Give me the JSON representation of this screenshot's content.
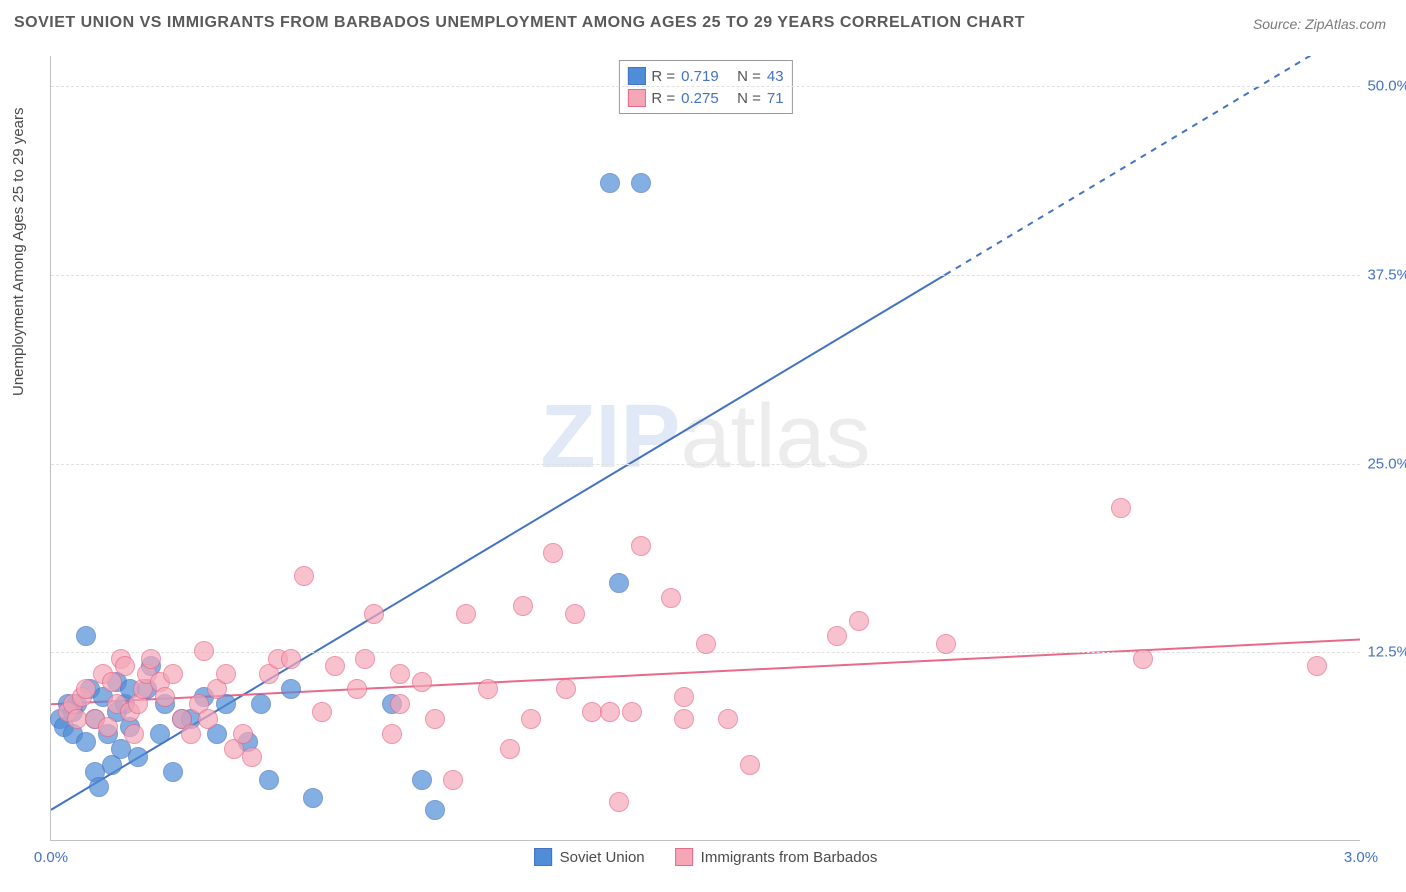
{
  "title": "SOVIET UNION VS IMMIGRANTS FROM BARBADOS UNEMPLOYMENT AMONG AGES 25 TO 29 YEARS CORRELATION CHART",
  "source": "Source: ZipAtlas.com",
  "watermark_prefix": "ZIP",
  "watermark_suffix": "atlas",
  "ylabel": "Unemployment Among Ages 25 to 29 years",
  "chart": {
    "type": "scatter",
    "background_color": "#ffffff",
    "grid_color": "#e0e0e0",
    "axis_color": "#c0c0c0",
    "tick_color": "#4472c4",
    "tick_fontsize": 15,
    "xlim": [
      0.0,
      3.0
    ],
    "ylim": [
      0.0,
      52.0
    ],
    "xticks": [
      {
        "v": 0.0,
        "label": "0.0%"
      },
      {
        "v": 3.0,
        "label": "3.0%"
      }
    ],
    "yticks": [
      {
        "v": 12.5,
        "label": "12.5%"
      },
      {
        "v": 25.0,
        "label": "25.0%"
      },
      {
        "v": 37.5,
        "label": "37.5%"
      },
      {
        "v": 50.0,
        "label": "50.0%"
      }
    ],
    "point_radius": 10,
    "point_fill_opacity": 0.35,
    "point_stroke_width": 1.5,
    "series": [
      {
        "id": "soviet",
        "name": "Soviet Union",
        "color": "#4f8ed6",
        "stroke": "#4472c4",
        "R": "0.719",
        "N": "43",
        "trend": {
          "x1": 0.0,
          "y1": 2.0,
          "x2": 2.05,
          "y2": 37.5,
          "dash_from_x": 2.05,
          "x3": 3.0,
          "y3": 54.0,
          "width": 2
        },
        "points": [
          [
            0.02,
            8.0
          ],
          [
            0.03,
            7.5
          ],
          [
            0.04,
            9.0
          ],
          [
            0.05,
            8.5
          ],
          [
            0.05,
            7.0
          ],
          [
            0.06,
            9.0
          ],
          [
            0.08,
            13.5
          ],
          [
            0.08,
            6.5
          ],
          [
            0.09,
            10.0
          ],
          [
            0.1,
            8.0
          ],
          [
            0.1,
            4.5
          ],
          [
            0.11,
            3.5
          ],
          [
            0.12,
            9.5
          ],
          [
            0.13,
            7.0
          ],
          [
            0.14,
            5.0
          ],
          [
            0.15,
            8.5
          ],
          [
            0.15,
            10.5
          ],
          [
            0.16,
            6.0
          ],
          [
            0.17,
            9.0
          ],
          [
            0.18,
            10.0
          ],
          [
            0.18,
            7.5
          ],
          [
            0.2,
            5.5
          ],
          [
            0.22,
            10.0
          ],
          [
            0.23,
            11.5
          ],
          [
            0.25,
            7.0
          ],
          [
            0.26,
            9.0
          ],
          [
            0.28,
            4.5
          ],
          [
            0.3,
            8.0
          ],
          [
            0.32,
            8.0
          ],
          [
            0.35,
            9.5
          ],
          [
            0.38,
            7.0
          ],
          [
            0.4,
            9.0
          ],
          [
            0.45,
            6.5
          ],
          [
            0.48,
            9.0
          ],
          [
            0.5,
            4.0
          ],
          [
            0.55,
            10.0
          ],
          [
            0.6,
            2.8
          ],
          [
            0.78,
            9.0
          ],
          [
            0.85,
            4.0
          ],
          [
            0.88,
            2.0
          ],
          [
            1.28,
            43.5
          ],
          [
            1.35,
            43.5
          ],
          [
            1.3,
            17.0
          ]
        ]
      },
      {
        "id": "barbados",
        "name": "Immigrants from Barbados",
        "color": "#f5a7b8",
        "stroke": "#e86a8a",
        "R": "0.275",
        "N": "71",
        "trend": {
          "x1": 0.0,
          "y1": 9.0,
          "x2": 3.0,
          "y2": 13.3,
          "width": 2
        },
        "points": [
          [
            0.04,
            8.5
          ],
          [
            0.05,
            9.0
          ],
          [
            0.06,
            8.0
          ],
          [
            0.07,
            9.5
          ],
          [
            0.08,
            10.0
          ],
          [
            0.1,
            8.0
          ],
          [
            0.12,
            11.0
          ],
          [
            0.13,
            7.5
          ],
          [
            0.14,
            10.5
          ],
          [
            0.15,
            9.0
          ],
          [
            0.16,
            12.0
          ],
          [
            0.17,
            11.5
          ],
          [
            0.18,
            8.5
          ],
          [
            0.19,
            7.0
          ],
          [
            0.2,
            9.0
          ],
          [
            0.21,
            10.0
          ],
          [
            0.22,
            11.0
          ],
          [
            0.23,
            12.0
          ],
          [
            0.25,
            10.5
          ],
          [
            0.26,
            9.5
          ],
          [
            0.28,
            11.0
          ],
          [
            0.3,
            8.0
          ],
          [
            0.32,
            7.0
          ],
          [
            0.34,
            9.0
          ],
          [
            0.35,
            12.5
          ],
          [
            0.36,
            8.0
          ],
          [
            0.38,
            10.0
          ],
          [
            0.4,
            11.0
          ],
          [
            0.42,
            6.0
          ],
          [
            0.44,
            7.0
          ],
          [
            0.46,
            5.5
          ],
          [
            0.5,
            11.0
          ],
          [
            0.52,
            12.0
          ],
          [
            0.55,
            12.0
          ],
          [
            0.58,
            17.5
          ],
          [
            0.62,
            8.5
          ],
          [
            0.65,
            11.5
          ],
          [
            0.7,
            10.0
          ],
          [
            0.72,
            12.0
          ],
          [
            0.74,
            15.0
          ],
          [
            0.78,
            7.0
          ],
          [
            0.8,
            9.0
          ],
          [
            0.8,
            11.0
          ],
          [
            0.85,
            10.5
          ],
          [
            0.88,
            8.0
          ],
          [
            0.92,
            4.0
          ],
          [
            0.95,
            15.0
          ],
          [
            1.0,
            10.0
          ],
          [
            1.05,
            6.0
          ],
          [
            1.08,
            15.5
          ],
          [
            1.1,
            8.0
          ],
          [
            1.15,
            19.0
          ],
          [
            1.18,
            10.0
          ],
          [
            1.2,
            15.0
          ],
          [
            1.24,
            8.5
          ],
          [
            1.28,
            8.5
          ],
          [
            1.3,
            2.5
          ],
          [
            1.33,
            8.5
          ],
          [
            1.35,
            19.5
          ],
          [
            1.42,
            16.0
          ],
          [
            1.45,
            8.0
          ],
          [
            1.45,
            9.5
          ],
          [
            1.5,
            13.0
          ],
          [
            1.55,
            8.0
          ],
          [
            1.6,
            5.0
          ],
          [
            1.8,
            13.5
          ],
          [
            1.85,
            14.5
          ],
          [
            2.05,
            13.0
          ],
          [
            2.5,
            12.0
          ],
          [
            2.45,
            22.0
          ],
          [
            2.9,
            11.5
          ]
        ]
      }
    ]
  },
  "legend": {
    "R_label": "R =",
    "N_label": "N ="
  }
}
